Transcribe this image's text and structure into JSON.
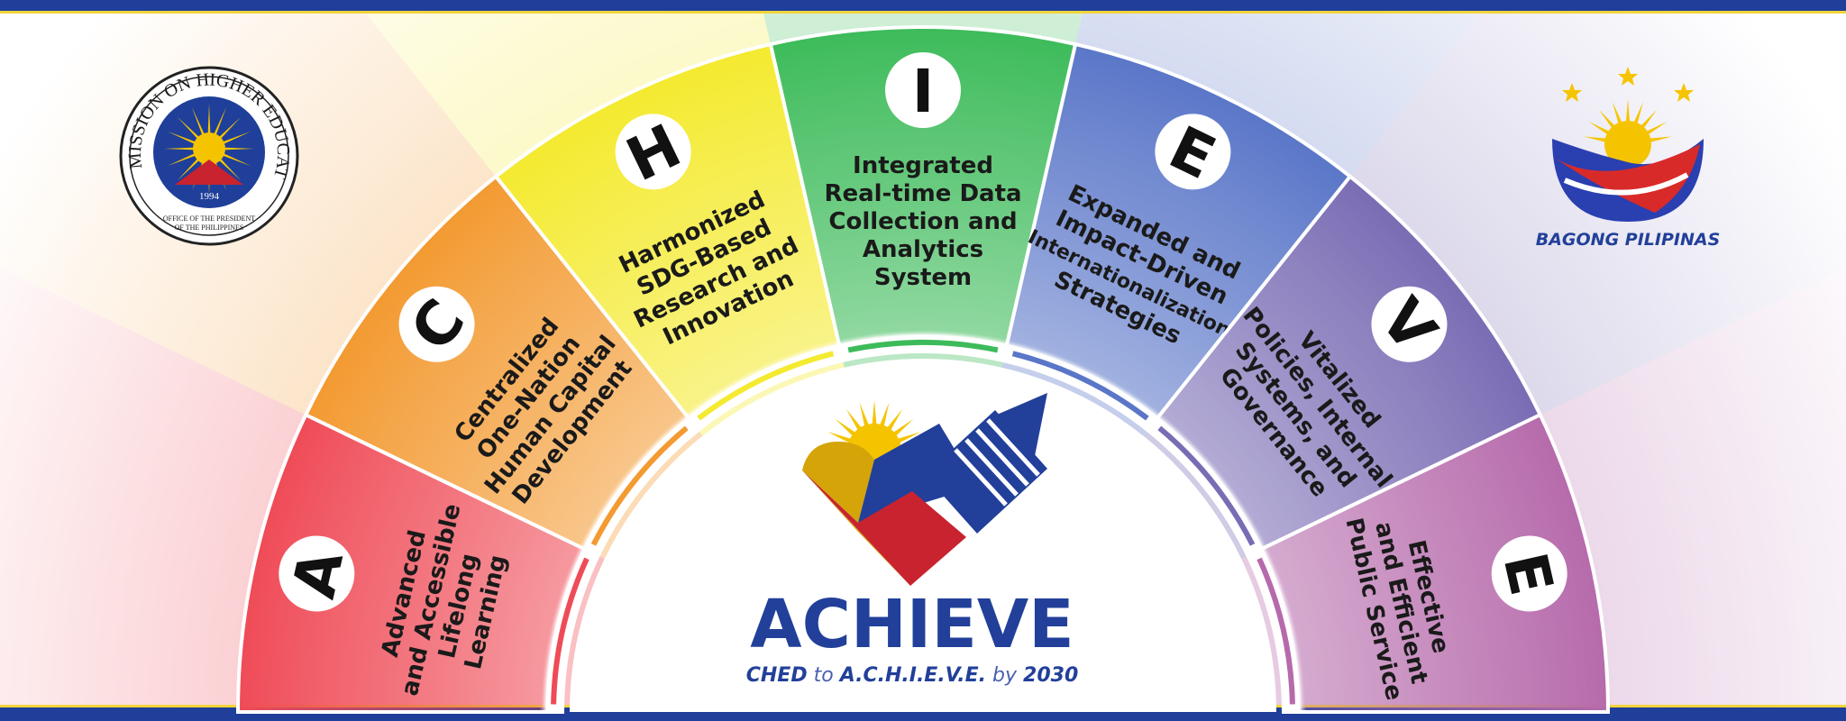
{
  "header": {
    "top_bar_color": "#1f3f9a",
    "accent_line_color": "#f2d43a"
  },
  "left_logo": {
    "ring_text": "COMMISSION ON HIGHER EDUCATION",
    "year": "1994",
    "sub_line_1": "OFFICE OF THE PRESIDENT",
    "sub_line_2": "OF THE PHILIPPINES"
  },
  "right_logo": {
    "label": "BAGONG PILIPINAS"
  },
  "segments": [
    {
      "letter": "A",
      "color": "#ef4b57",
      "lines": [
        "Advanced",
        "and Accessible",
        "Lifelong",
        "Learning"
      ]
    },
    {
      "letter": "C",
      "color": "#f39a31",
      "lines": [
        "Centralized",
        "One-Nation",
        "Human Capital",
        "Development"
      ]
    },
    {
      "letter": "H",
      "color": "#f4ea2f",
      "lines": [
        "Harmonized",
        "SDG-Based",
        "Research and",
        "Innovation"
      ]
    },
    {
      "letter": "I",
      "color": "#3dbb5a",
      "lines": [
        "Integrated",
        "Real-time Data",
        "Collection and",
        "Analytics",
        "System"
      ]
    },
    {
      "letter": "E",
      "color": "#5a76c8",
      "lines": [
        "Expanded and",
        "Impact-Driven",
        "Internationalization",
        "Strategies"
      ]
    },
    {
      "letter": "V",
      "color": "#7a6cb4",
      "lines": [
        "Vitalized",
        "Policies, Internal",
        "Systems, and",
        "Governance"
      ]
    },
    {
      "letter": "E",
      "color": "#b66aab",
      "lines": [
        "Effective",
        "and Efficient",
        "Public Service"
      ]
    }
  ],
  "center": {
    "title": "ACHIEVE",
    "tagline_1": "CHED",
    "tagline_2": " to ",
    "tagline_3": "A.C.H.I.E.V.E.",
    "tagline_4": " by ",
    "tagline_5": "2030",
    "flag_blue": "#22409a",
    "flag_red": "#c8232f",
    "flag_yellow": "#d4a408"
  }
}
